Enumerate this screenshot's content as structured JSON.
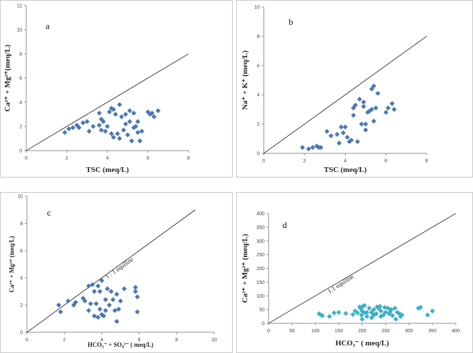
{
  "colors": {
    "marker_blue": "#4a78b5",
    "marker_cyan": "#3bb0c9",
    "line": "#3a3a3a"
  },
  "chart_data": [
    {
      "type": "scatter",
      "panel_label": "a",
      "xlabel": "TSC (meq/L)",
      "ylabel": "Ca²⁺ + Mg²⁺(meq/L)",
      "xlim": [
        0,
        8
      ],
      "ylim": [
        0,
        12
      ],
      "xticks": [
        "0",
        "2",
        "4",
        "6",
        "8"
      ],
      "yticks": [
        "0",
        "2",
        "4",
        "6",
        "8",
        "10",
        "12"
      ],
      "equiline": true,
      "equiline_label": "",
      "marker_color": "#4a78b5",
      "points": [
        [
          1.9,
          1.5
        ],
        [
          2.1,
          1.8
        ],
        [
          2.3,
          1.9
        ],
        [
          2.5,
          2.1
        ],
        [
          2.6,
          1.9
        ],
        [
          2.8,
          2.3
        ],
        [
          3.0,
          2.4
        ],
        [
          3.1,
          1.6
        ],
        [
          3.3,
          2.0
        ],
        [
          3.6,
          2.1
        ],
        [
          3.6,
          3.1
        ],
        [
          3.7,
          1.7
        ],
        [
          3.7,
          2.6
        ],
        [
          3.8,
          2.4
        ],
        [
          3.9,
          1.6
        ],
        [
          4.0,
          2.0
        ],
        [
          4.1,
          3.2
        ],
        [
          4.2,
          3.5
        ],
        [
          4.2,
          1.4
        ],
        [
          4.3,
          1.1
        ],
        [
          4.3,
          3.4
        ],
        [
          4.4,
          3.0
        ],
        [
          4.5,
          1.4
        ],
        [
          4.6,
          3.8
        ],
        [
          4.6,
          1.0
        ],
        [
          4.7,
          2.8
        ],
        [
          4.8,
          1.7
        ],
        [
          4.9,
          3.0
        ],
        [
          4.9,
          2.2
        ],
        [
          5.0,
          1.3
        ],
        [
          5.1,
          2.4
        ],
        [
          5.1,
          3.3
        ],
        [
          5.2,
          0.8
        ],
        [
          5.3,
          3.1
        ],
        [
          5.3,
          1.9
        ],
        [
          5.4,
          2.0
        ],
        [
          5.5,
          2.4
        ],
        [
          5.5,
          1.5
        ],
        [
          5.6,
          0.8
        ],
        [
          5.7,
          1.6
        ],
        [
          6.0,
          3.2
        ],
        [
          6.1,
          3.0
        ],
        [
          6.2,
          3.1
        ],
        [
          6.3,
          2.8
        ],
        [
          6.5,
          3.3
        ]
      ]
    },
    {
      "type": "scatter",
      "panel_label": "b",
      "xlabel": "TSC (meq/L)",
      "ylabel": "Na⁺ + K⁺ (meq/L)",
      "xlim": [
        0,
        8
      ],
      "ylim": [
        0,
        10
      ],
      "xticks": [
        "0",
        "2",
        "4",
        "6",
        "8"
      ],
      "yticks": [
        "0",
        "2",
        "4",
        "6",
        "8",
        "10"
      ],
      "equiline": true,
      "equiline_label": "",
      "marker_color": "#4a78b5",
      "points": [
        [
          1.9,
          0.4
        ],
        [
          2.2,
          0.3
        ],
        [
          2.4,
          0.4
        ],
        [
          2.6,
          0.5
        ],
        [
          2.7,
          0.4
        ],
        [
          2.8,
          0.4
        ],
        [
          3.1,
          1.5
        ],
        [
          3.3,
          1.2
        ],
        [
          3.6,
          1.3
        ],
        [
          3.7,
          0.7
        ],
        [
          3.8,
          1.8
        ],
        [
          3.9,
          1.4
        ],
        [
          4.0,
          1.8
        ],
        [
          4.1,
          1.1
        ],
        [
          4.2,
          0.8
        ],
        [
          4.3,
          0.9
        ],
        [
          4.4,
          3.1
        ],
        [
          4.4,
          2.6
        ],
        [
          4.5,
          3.3
        ],
        [
          4.6,
          0.8
        ],
        [
          4.7,
          3.7
        ],
        [
          4.8,
          2.0
        ],
        [
          4.9,
          3.2
        ],
        [
          4.9,
          3.5
        ],
        [
          5.0,
          2.0
        ],
        [
          5.0,
          1.6
        ],
        [
          5.1,
          2.8
        ],
        [
          5.2,
          2.9
        ],
        [
          5.3,
          4.4
        ],
        [
          5.3,
          3.0
        ],
        [
          5.4,
          4.6
        ],
        [
          5.4,
          2.2
        ],
        [
          5.5,
          3.1
        ],
        [
          5.6,
          4.1
        ],
        [
          6.0,
          2.8
        ],
        [
          6.1,
          3.1
        ],
        [
          6.3,
          3.4
        ],
        [
          6.4,
          3.0
        ]
      ]
    },
    {
      "type": "scatter",
      "panel_label": "c",
      "xlabel": "HCO₃⁻ + SO₄²⁻ ( meq/L)",
      "ylabel": "Ca²⁺ + Mg²⁺ (meq/L)",
      "xlim": [
        0,
        10
      ],
      "ylim": [
        0,
        10
      ],
      "xticks": [
        "0",
        "2",
        "4",
        "6",
        "8",
        "10"
      ],
      "yticks": [
        "0",
        "2",
        "4",
        "6",
        "8",
        "10"
      ],
      "equiline": true,
      "equiline_label": "1 : 1 equiline",
      "marker_color": "#4a78b5",
      "points": [
        [
          1.7,
          2.0
        ],
        [
          1.8,
          1.5
        ],
        [
          2.2,
          2.3
        ],
        [
          2.5,
          2.0
        ],
        [
          2.6,
          2.2
        ],
        [
          3.0,
          2.5
        ],
        [
          3.1,
          2.3
        ],
        [
          3.3,
          1.6
        ],
        [
          3.3,
          3.4
        ],
        [
          3.4,
          2.1
        ],
        [
          3.5,
          3.5
        ],
        [
          3.6,
          3.0
        ],
        [
          3.6,
          1.2
        ],
        [
          3.7,
          2.1
        ],
        [
          3.8,
          1.1
        ],
        [
          3.8,
          3.4
        ],
        [
          3.9,
          1.7
        ],
        [
          3.9,
          3.0
        ],
        [
          4.0,
          1.3
        ],
        [
          4.0,
          3.8
        ],
        [
          4.1,
          1.2
        ],
        [
          4.2,
          2.4
        ],
        [
          4.2,
          1.6
        ],
        [
          4.3,
          3.2
        ],
        [
          4.4,
          2.0
        ],
        [
          4.5,
          3.0
        ],
        [
          4.6,
          2.4
        ],
        [
          4.7,
          1.6
        ],
        [
          4.8,
          0.8
        ],
        [
          4.8,
          2.8
        ],
        [
          4.9,
          1.7
        ],
        [
          5.0,
          2.3
        ],
        [
          5.2,
          3.2
        ],
        [
          5.8,
          3.3
        ],
        [
          5.8,
          3.0
        ],
        [
          5.9,
          2.6
        ],
        [
          5.9,
          1.5
        ]
      ]
    },
    {
      "type": "scatter",
      "panel_label": "d",
      "xlabel": "HCO₃⁻ ( meq/L)",
      "ylabel": "Ca²⁺ + Mg²⁺ (meq/L)",
      "xlim": [
        0,
        400
      ],
      "ylim": [
        0,
        400
      ],
      "xticks": [
        "0",
        "50",
        "100",
        "150",
        "200",
        "250",
        "300",
        "350",
        "400"
      ],
      "yticks": [
        "0",
        "50",
        "100",
        "150",
        "200",
        "250",
        "300",
        "350",
        "400"
      ],
      "equiline": true,
      "equiline_label": "1:1 equiline",
      "marker_color": "#3bb0c9",
      "points": [
        [
          108,
          35
        ],
        [
          112,
          30
        ],
        [
          115,
          28
        ],
        [
          130,
          25
        ],
        [
          140,
          38
        ],
        [
          150,
          40
        ],
        [
          165,
          36
        ],
        [
          180,
          32
        ],
        [
          185,
          45
        ],
        [
          190,
          38
        ],
        [
          195,
          60
        ],
        [
          196,
          55
        ],
        [
          198,
          30
        ],
        [
          200,
          15
        ],
        [
          200,
          45
        ],
        [
          202,
          62
        ],
        [
          205,
          65
        ],
        [
          205,
          38
        ],
        [
          210,
          40
        ],
        [
          210,
          25
        ],
        [
          215,
          55
        ],
        [
          220,
          20
        ],
        [
          220,
          40
        ],
        [
          225,
          30
        ],
        [
          225,
          50
        ],
        [
          230,
          35
        ],
        [
          232,
          60
        ],
        [
          235,
          55
        ],
        [
          238,
          62
        ],
        [
          240,
          25
        ],
        [
          240,
          45
        ],
        [
          245,
          30
        ],
        [
          248,
          58
        ],
        [
          250,
          40
        ],
        [
          255,
          55
        ],
        [
          258,
          35
        ],
        [
          260,
          42
        ],
        [
          262,
          50
        ],
        [
          265,
          28
        ],
        [
          270,
          55
        ],
        [
          272,
          15
        ],
        [
          275,
          40
        ],
        [
          280,
          35
        ],
        [
          282,
          25
        ],
        [
          285,
          30
        ],
        [
          320,
          55
        ],
        [
          325,
          58
        ],
        [
          340,
          30
        ],
        [
          350,
          45
        ]
      ]
    }
  ]
}
